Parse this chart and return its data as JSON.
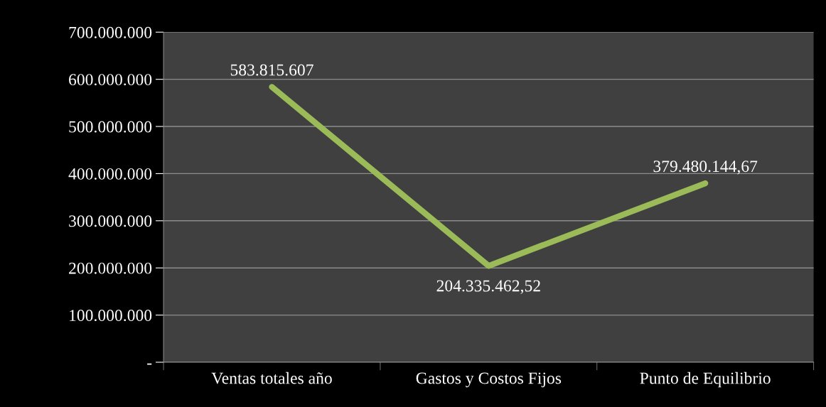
{
  "chart_data": {
    "type": "line",
    "categories": [
      "Ventas totales año",
      "Gastos y Costos Fijos",
      "Punto de Equilibrio"
    ],
    "series": [
      {
        "color": "#9bbb59",
        "values": [
          583815607,
          204335462.52,
          379480144.67
        ],
        "value_labels": [
          "583.815.607",
          "204.335.462,52",
          "379.480.144,67"
        ]
      }
    ],
    "ylim": [
      0,
      700000000
    ],
    "yticks": [
      {
        "value": 0,
        "label": "-"
      },
      {
        "value": 100000000,
        "label": "100.000.000"
      },
      {
        "value": 200000000,
        "label": "200.000.000"
      },
      {
        "value": 300000000,
        "label": "300.000.000"
      },
      {
        "value": 400000000,
        "label": "400.000.000"
      },
      {
        "value": 500000000,
        "label": "500.000.000"
      },
      {
        "value": 600000000,
        "label": "600.000.000"
      },
      {
        "value": 700000000,
        "label": "700.000.000"
      }
    ],
    "grid": "y",
    "marker": "none",
    "line_style": "solid",
    "legend": false
  }
}
